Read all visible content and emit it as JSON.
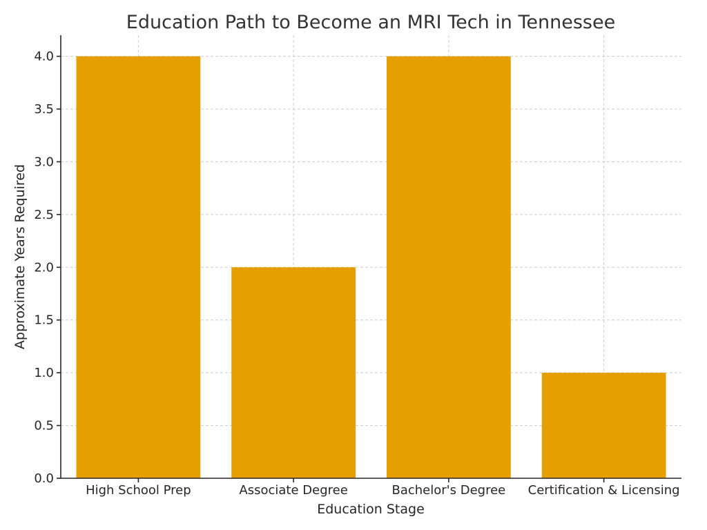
{
  "chart_data": {
    "type": "bar",
    "title": "Education Path to Become an MRI Tech in Tennessee",
    "xlabel": "Education Stage",
    "ylabel": "Approximate Years Required",
    "categories": [
      "High School Prep",
      "Associate Degree",
      "Bachelor's Degree",
      "Certification & Licensing"
    ],
    "values": [
      4,
      2,
      4,
      1
    ],
    "ylim": [
      0,
      4.2
    ],
    "yticks": [
      "0.0",
      "0.5",
      "1.0",
      "1.5",
      "2.0",
      "2.5",
      "3.0",
      "3.5",
      "4.0"
    ],
    "grid": true,
    "bar_color": "#E69F00"
  }
}
